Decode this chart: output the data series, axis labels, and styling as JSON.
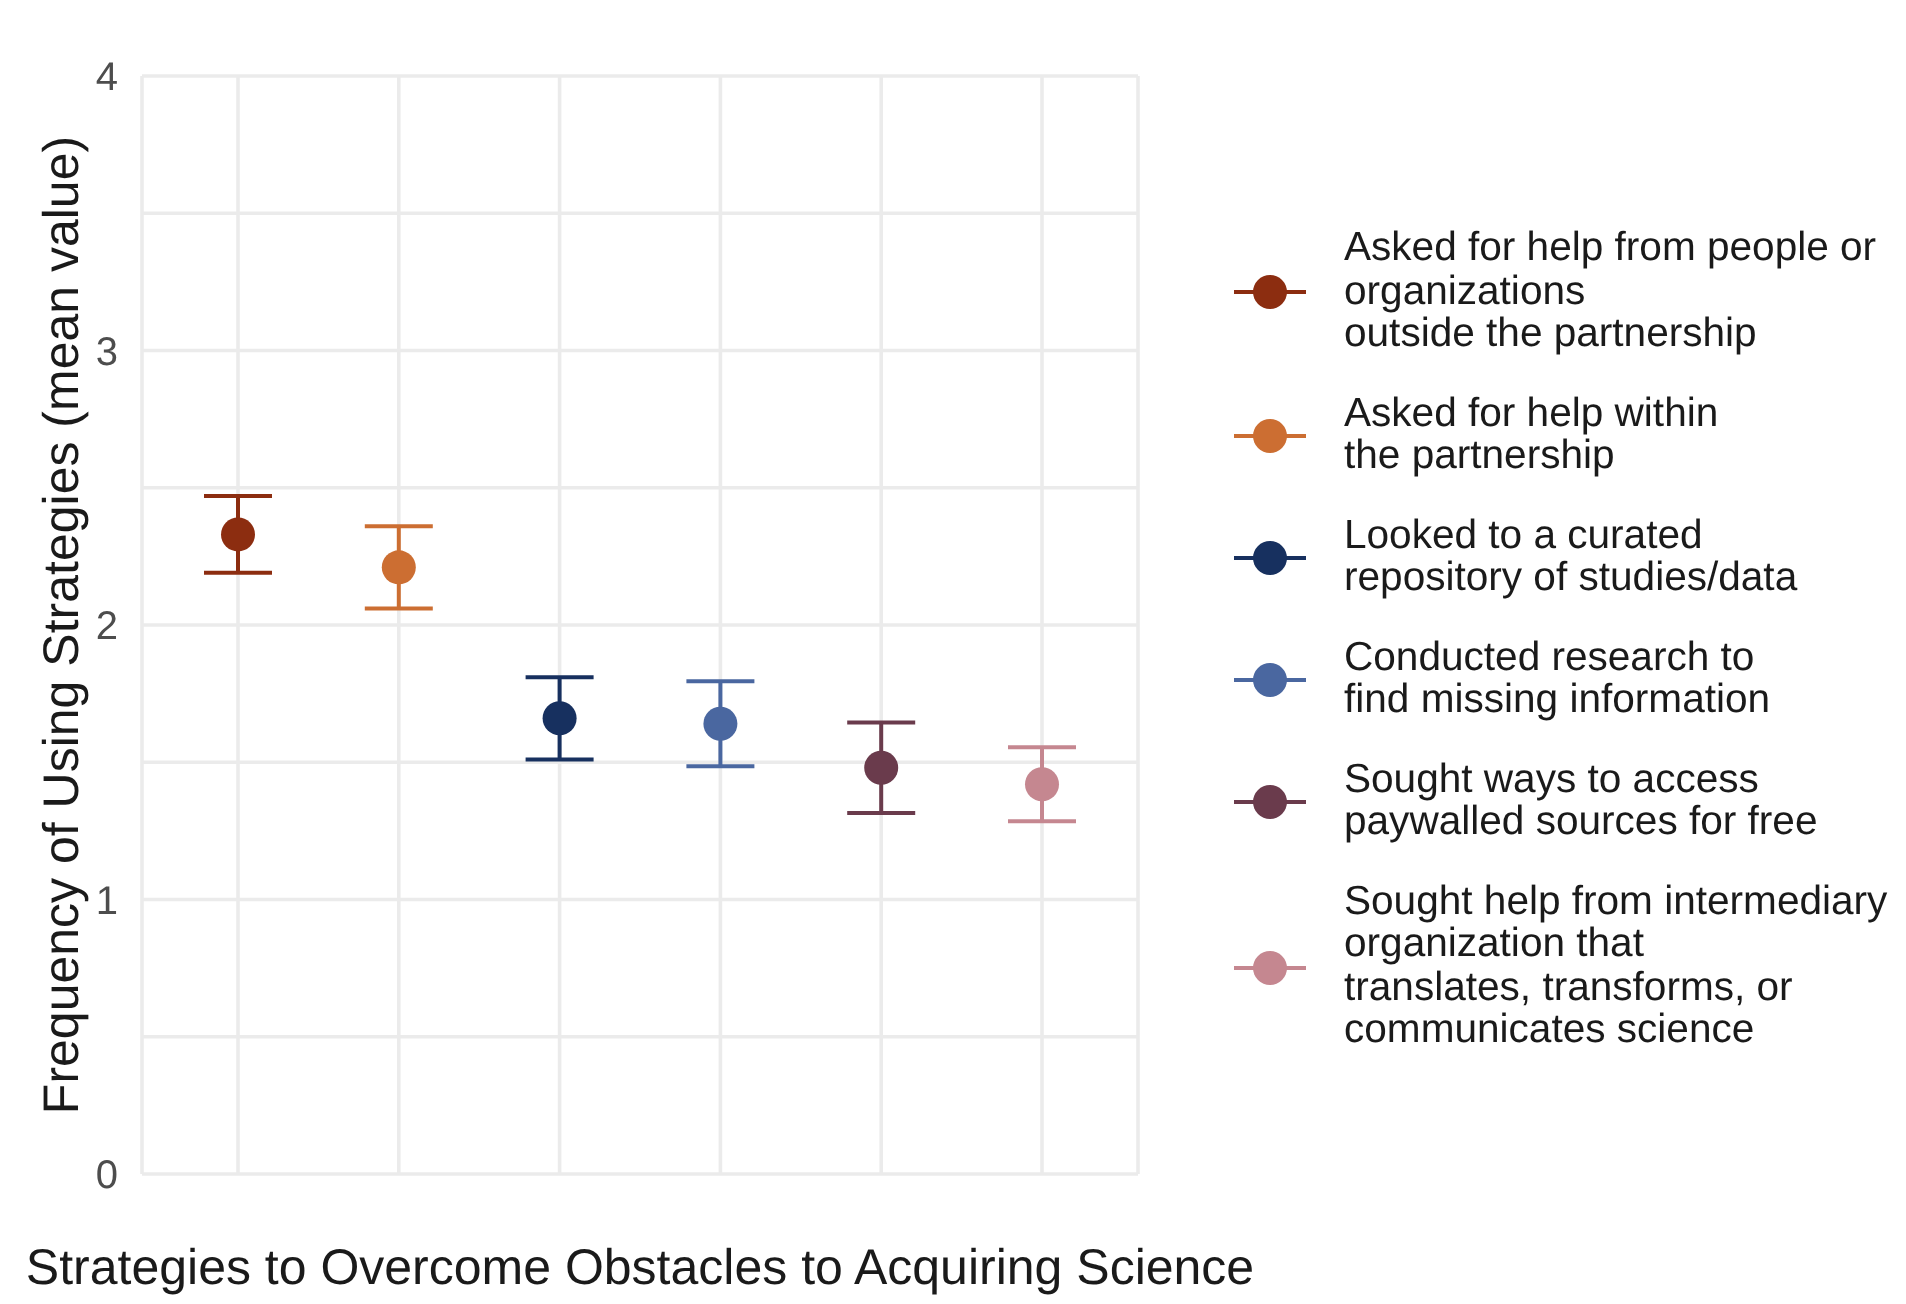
{
  "chart_data": {
    "type": "scatter",
    "xlabel": "Strategies to Overcome Obstacles to Acquiring Science",
    "ylabel": "Frequency of Using Strategies (mean value)",
    "categories": [
      null,
      null,
      null,
      null,
      null,
      null
    ],
    "series": [
      {
        "name": "Asked for help from people or\norganizations\noutside the partnership",
        "color": "#8c2d10",
        "values": [
          2.33,
          null,
          null,
          null,
          null,
          null
        ],
        "errors": [
          0.14,
          null,
          null,
          null,
          null,
          null
        ]
      },
      {
        "name": "Asked for help within\nthe partnership",
        "color": "#cc6e32",
        "values": [
          null,
          2.21,
          null,
          null,
          null,
          null
        ],
        "errors": [
          null,
          0.15,
          null,
          null,
          null,
          null
        ]
      },
      {
        "name": "Looked to a curated\nrepository of studies/data",
        "color": "#17305f",
        "values": [
          null,
          null,
          1.66,
          null,
          null,
          null
        ],
        "errors": [
          null,
          null,
          0.15,
          null,
          null,
          null
        ]
      },
      {
        "name": "Conducted research to\nfind missing information",
        "color": "#4a67a0",
        "values": [
          null,
          null,
          null,
          1.64,
          null,
          null
        ],
        "errors": [
          null,
          null,
          null,
          0.155,
          null,
          null
        ]
      },
      {
        "name": "Sought ways to access\npaywalled sources for free",
        "color": "#6a3b4c",
        "values": [
          null,
          null,
          null,
          null,
          1.48,
          null
        ],
        "errors": [
          null,
          null,
          null,
          null,
          0.165,
          null
        ]
      },
      {
        "name": "Sought help from intermediary\norganization that\ntranslates, transforms, or\ncommunicates science",
        "color": "#c58790",
        "values": [
          null,
          null,
          null,
          null,
          null,
          1.42
        ],
        "errors": [
          null,
          null,
          null,
          null,
          null,
          0.135
        ]
      }
    ],
    "ylim": [
      0,
      4
    ],
    "yticks": [
      0,
      {
        "value": 0.5,
        "label": null
      },
      1,
      {
        "value": 1.5,
        "label": null
      },
      2,
      {
        "value": 2.5,
        "label": null
      },
      3,
      {
        "value": 3.5,
        "label": null
      },
      4
    ],
    "grid": true,
    "legend": "right",
    "marker": "circle",
    "tick_labels": "y"
  }
}
